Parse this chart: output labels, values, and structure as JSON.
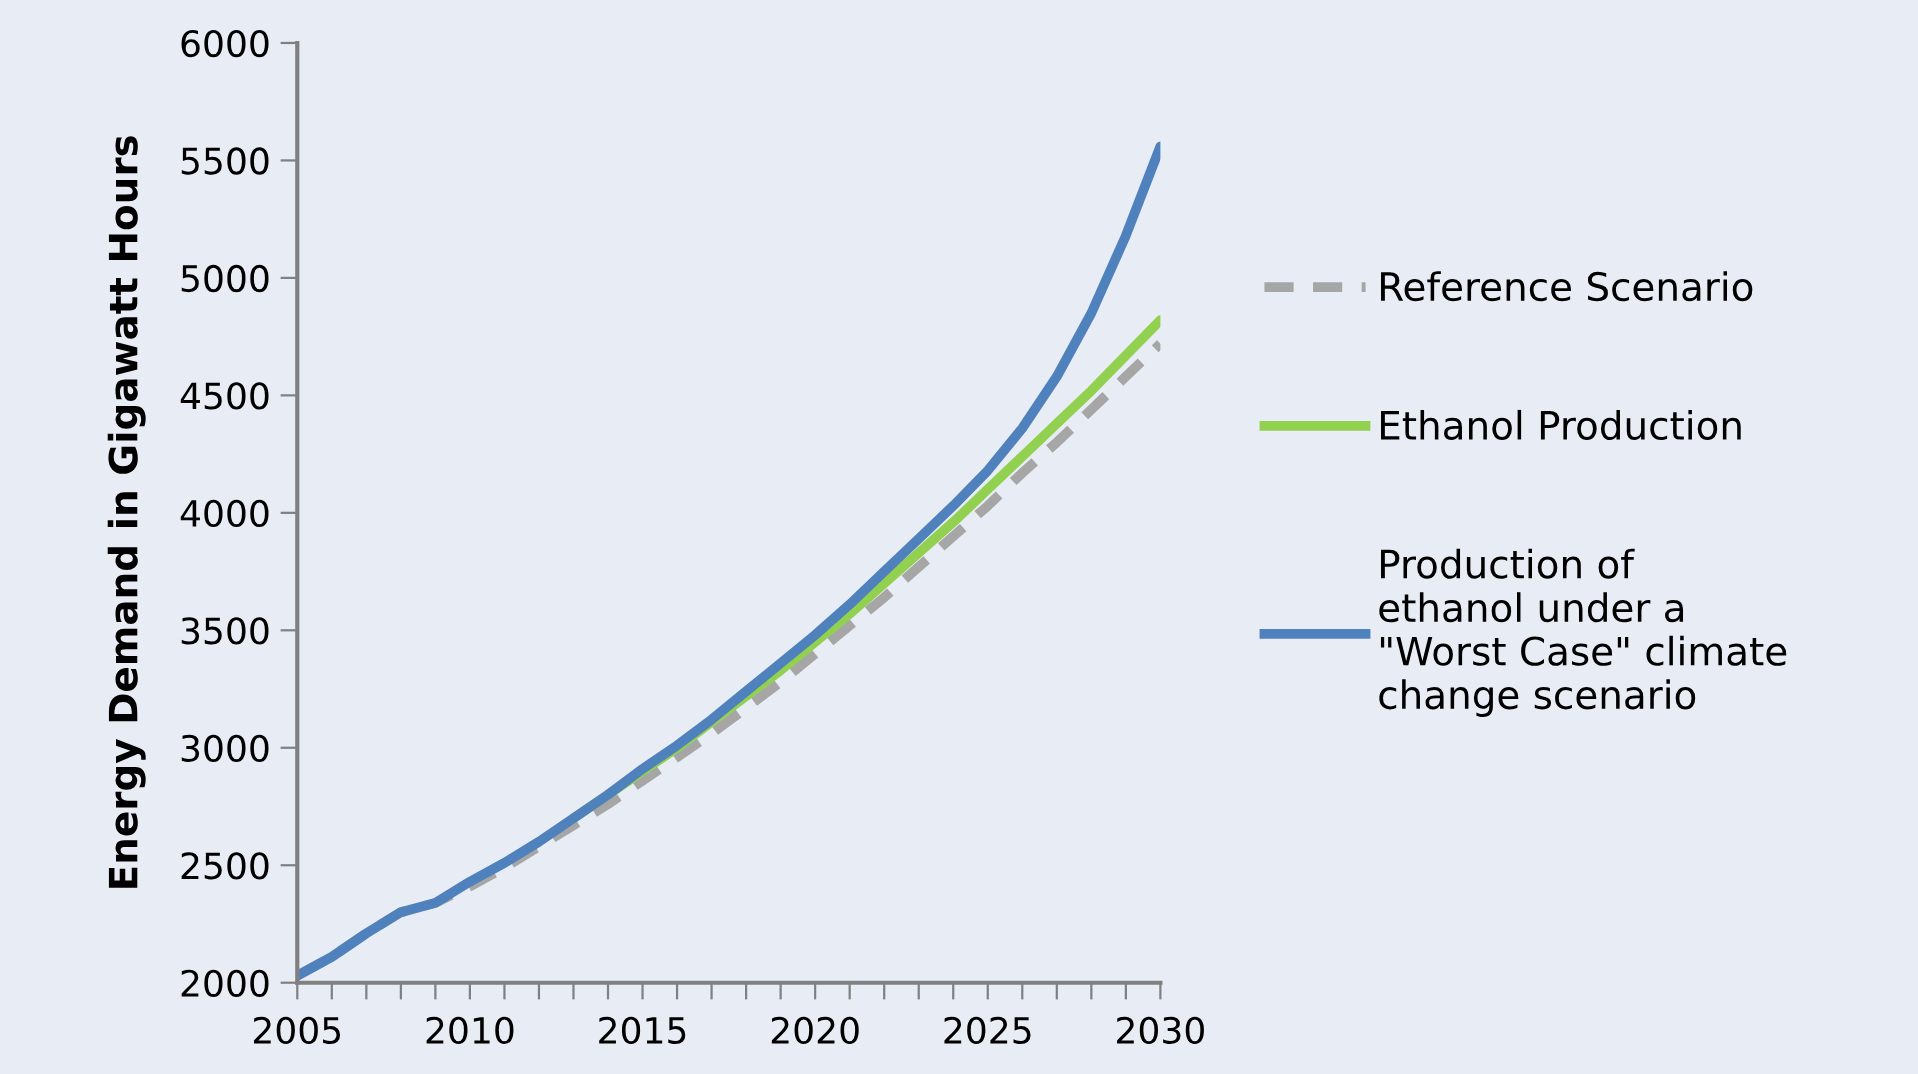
{
  "chart_data": {
    "type": "line",
    "ylabel": "Energy Demand in Gigawatt Hours",
    "x": [
      2005,
      2006,
      2007,
      2008,
      2009,
      2010,
      2011,
      2012,
      2013,
      2014,
      2015,
      2016,
      2017,
      2018,
      2019,
      2020,
      2021,
      2022,
      2023,
      2024,
      2025,
      2026,
      2027,
      2028,
      2029,
      2030
    ],
    "series": [
      {
        "name": "Reference Scenario",
        "color": "#a6a6a6",
        "line_style": "dashed",
        "values": [
          2030,
          2110,
          2210,
          2300,
          2340,
          2410,
          2490,
          2580,
          2670,
          2760,
          2860,
          2960,
          3060,
          3170,
          3280,
          3400,
          3520,
          3640,
          3770,
          3900,
          4030,
          4170,
          4300,
          4440,
          4580,
          4720
        ]
      },
      {
        "name": "Ethanol Production",
        "color": "#92d050",
        "line_style": "solid",
        "values": [
          null,
          null,
          null,
          null,
          null,
          null,
          null,
          null,
          2700,
          2800,
          2900,
          3000,
          3110,
          3220,
          3330,
          3450,
          3570,
          3700,
          3830,
          3960,
          4100,
          4240,
          4380,
          4520,
          4670,
          4820
        ]
      },
      {
        "name": "Production of\nethanol under a\n\"Worst Case\" climate\nchange scenario",
        "color": "#4f81bd",
        "line_style": "solid",
        "values": [
          2030,
          2110,
          2210,
          2300,
          2340,
          2430,
          2510,
          2600,
          2700,
          2800,
          2910,
          3010,
          3120,
          3240,
          3360,
          3480,
          3610,
          3750,
          3890,
          4030,
          4180,
          4360,
          4580,
          4850,
          5180,
          5560
        ]
      }
    ],
    "xlim": [
      2005,
      2030
    ],
    "xticks": [
      2005,
      {
        "value": 2006,
        "label": null
      },
      {
        "value": 2007,
        "label": null
      },
      {
        "value": 2008,
        "label": null
      },
      {
        "value": 2009,
        "label": null
      },
      2010,
      {
        "value": 2011,
        "label": null
      },
      {
        "value": 2012,
        "label": null
      },
      {
        "value": 2013,
        "label": null
      },
      {
        "value": 2014,
        "label": null
      },
      2015,
      {
        "value": 2016,
        "label": null
      },
      {
        "value": 2017,
        "label": null
      },
      {
        "value": 2018,
        "label": null
      },
      {
        "value": 2019,
        "label": null
      },
      2020,
      {
        "value": 2021,
        "label": null
      },
      {
        "value": 2022,
        "label": null
      },
      {
        "value": 2023,
        "label": null
      },
      {
        "value": 2024,
        "label": null
      },
      2025,
      {
        "value": 2026,
        "label": null
      },
      {
        "value": 2027,
        "label": null
      },
      {
        "value": 2028,
        "label": null
      },
      {
        "value": 2029,
        "label": null
      },
      2030
    ],
    "ylim": [
      2000,
      6000
    ],
    "yticks": [
      2000,
      2500,
      3000,
      3500,
      4000,
      4500,
      5000,
      5500,
      6000
    ],
    "grid": false,
    "legend": "right",
    "marker": "none"
  }
}
